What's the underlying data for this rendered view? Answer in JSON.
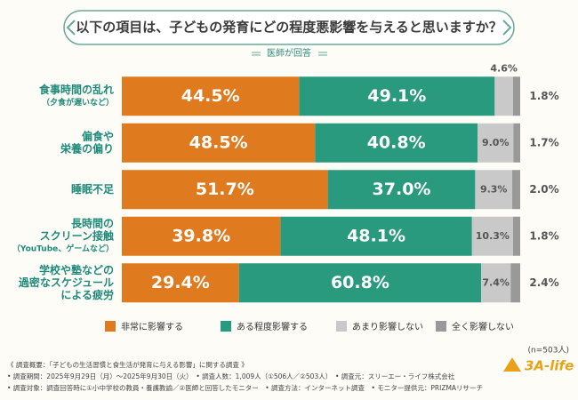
{
  "chart_data": {
    "type": "stacked-bar-horizontal",
    "title": "以下の項目は、子どもの発育にどの程度悪影響を与えると思いますか？",
    "subtitle": "医師が回答",
    "categories": [
      [
        "食事時間の乱れ",
        "（夕食が遅いなど）"
      ],
      [
        "偏食や",
        "栄養の偏り"
      ],
      [
        "睡眠不足"
      ],
      [
        "長時間の",
        "スクリーン接触",
        "（YouTube、ゲームなど）"
      ],
      [
        "学校や塾などの",
        "過密なスケジュール",
        "による疲労"
      ]
    ],
    "xlim": [
      0,
      100
    ],
    "series": [
      {
        "name": "非常に影響する",
        "color": "#e07a1f",
        "values": [
          44.5,
          48.5,
          51.7,
          39.8,
          29.4
        ],
        "value_labels": [
          "44.5%",
          "48.5%",
          "51.7%",
          "39.8%",
          "29.4%"
        ]
      },
      {
        "name": "ある程度影響する",
        "color": "#2a9a7e",
        "values": [
          49.1,
          40.8,
          37.0,
          48.1,
          60.8
        ],
        "value_labels": [
          "49.1%",
          "40.8%",
          "37.0%",
          "48.1%",
          "60.8%"
        ]
      },
      {
        "name": "あまり影響しない",
        "color": "#c9c9c9",
        "values": [
          4.6,
          9.0,
          9.3,
          10.3,
          7.4
        ],
        "value_labels": [
          "4.6%",
          "9.0%",
          "9.3%",
          "10.3%",
          "7.4%"
        ]
      },
      {
        "name": "全く影響しない",
        "color": "#999999",
        "values": [
          1.8,
          1.7,
          2.0,
          1.8,
          2.4
        ],
        "value_labels": [
          "1.8%",
          "1.7%",
          "2.0%",
          "1.8%",
          "2.4%"
        ]
      }
    ],
    "note": "(n=503人)",
    "footnotes": [
      "《 調査概要：「子どもの生活習慣と食生活が発育に与える影響」に関する調査 》",
      "• 調査期間：2025年9月29日（月）〜2025年9月30日（火）　• 調査人数：1,009人（①506人／②503人）　• 調査元：スリーエー・ライフ株式会社",
      "• 調査対象：調査回答時に①小中学校の教員・養護教諭／②医師と回答したモニター　• 調査方法：インターネット調査　• モニター提供元：PRIZMAリサーチ"
    ],
    "logo": "3A-life"
  }
}
